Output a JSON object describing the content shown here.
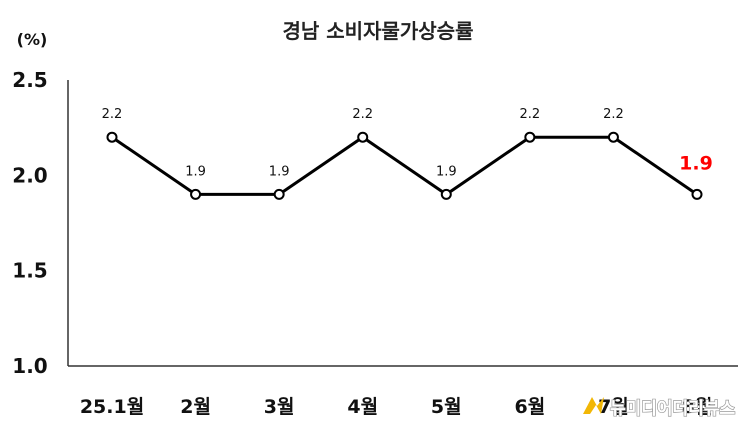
{
  "chart_data": {
    "type": "line",
    "title": "경남 소비자물가상승률",
    "ylabel": "(%)",
    "xlabel": "",
    "categories": [
      "25.1월",
      "2월",
      "3월",
      "4월",
      "5월",
      "6월",
      "7월",
      "8월"
    ],
    "series": [
      {
        "values": [
          2.2,
          1.9,
          1.9,
          2.2,
          1.9,
          2.2,
          2.2,
          1.9
        ],
        "color": "#000000"
      }
    ],
    "data_labels": [
      "2.2",
      "1.9",
      "1.9",
      "2.2",
      "1.9",
      "2.2",
      "2.2",
      "1.9"
    ],
    "highlight_index": 7,
    "highlight_color": "#ff0000",
    "ylim": [
      1.0,
      2.5
    ],
    "yticks": [
      "1.0",
      "1.5",
      "2.0",
      "2.5"
    ],
    "grid": false,
    "legend": "none"
  },
  "watermark": {
    "text": "뉴미디어더리뷰스",
    "icon": "flag-logo-icon",
    "icon_color": "#f2b705"
  }
}
